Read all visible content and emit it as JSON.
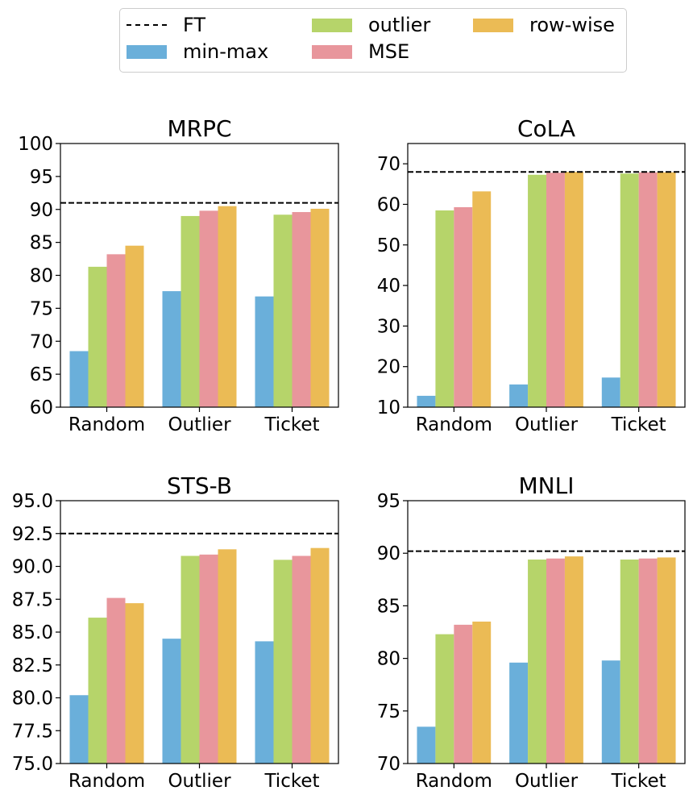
{
  "legend": {
    "ft_label": "FT",
    "items": [
      {
        "name": "min-max",
        "color": "#6aafda"
      },
      {
        "name": "outlier",
        "color": "#b6d46a"
      },
      {
        "name": "MSE",
        "color": "#e8969c"
      },
      {
        "name": "row-wise",
        "color": "#ebbb55"
      }
    ]
  },
  "chart_data": [
    {
      "type": "bar",
      "title": "MRPC",
      "categories": [
        "Random",
        "Outlier",
        "Ticket"
      ],
      "ylim": [
        60,
        100
      ],
      "yticks": [
        "60",
        "65",
        "70",
        "75",
        "80",
        "85",
        "90",
        "95",
        "100"
      ],
      "ft": 91.0,
      "series": [
        {
          "name": "min-max",
          "values": [
            68.5,
            77.6,
            76.8
          ]
        },
        {
          "name": "outlier",
          "values": [
            81.3,
            89.0,
            89.2
          ]
        },
        {
          "name": "MSE",
          "values": [
            83.2,
            89.8,
            89.6
          ]
        },
        {
          "name": "row-wise",
          "values": [
            84.5,
            90.5,
            90.1
          ]
        }
      ]
    },
    {
      "type": "bar",
      "title": "CoLA",
      "categories": [
        "Random",
        "Outlier",
        "Ticket"
      ],
      "ylim": [
        10,
        75
      ],
      "yticks": [
        "10",
        "20",
        "30",
        "40",
        "50",
        "60",
        "70"
      ],
      "ft": 68.0,
      "series": [
        {
          "name": "min-max",
          "values": [
            12.8,
            15.6,
            17.3
          ]
        },
        {
          "name": "outlier",
          "values": [
            58.5,
            67.3,
            67.6
          ]
        },
        {
          "name": "MSE",
          "values": [
            59.3,
            67.8,
            67.9
          ]
        },
        {
          "name": "row-wise",
          "values": [
            63.2,
            68.0,
            67.9
          ]
        }
      ]
    },
    {
      "type": "bar",
      "title": "STS-B",
      "categories": [
        "Random",
        "Outlier",
        "Ticket"
      ],
      "ylim": [
        75,
        95
      ],
      "yticks": [
        "75.0",
        "77.5",
        "80.0",
        "82.5",
        "85.0",
        "87.5",
        "90.0",
        "92.5",
        "95.0"
      ],
      "ft": 92.5,
      "series": [
        {
          "name": "min-max",
          "values": [
            80.2,
            84.5,
            84.3
          ]
        },
        {
          "name": "outlier",
          "values": [
            86.1,
            90.8,
            90.5
          ]
        },
        {
          "name": "MSE",
          "values": [
            87.6,
            90.9,
            90.8
          ]
        },
        {
          "name": "row-wise",
          "values": [
            87.2,
            91.3,
            91.4
          ]
        }
      ]
    },
    {
      "type": "bar",
      "title": "MNLI",
      "categories": [
        "Random",
        "Outlier",
        "Ticket"
      ],
      "ylim": [
        70,
        95
      ],
      "yticks": [
        "70",
        "75",
        "80",
        "85",
        "90",
        "95"
      ],
      "ft": 90.2,
      "series": [
        {
          "name": "min-max",
          "values": [
            73.5,
            79.6,
            79.8
          ]
        },
        {
          "name": "outlier",
          "values": [
            82.3,
            89.4,
            89.4
          ]
        },
        {
          "name": "MSE",
          "values": [
            83.2,
            89.5,
            89.5
          ]
        },
        {
          "name": "row-wise",
          "values": [
            83.5,
            89.7,
            89.6
          ]
        }
      ]
    }
  ]
}
